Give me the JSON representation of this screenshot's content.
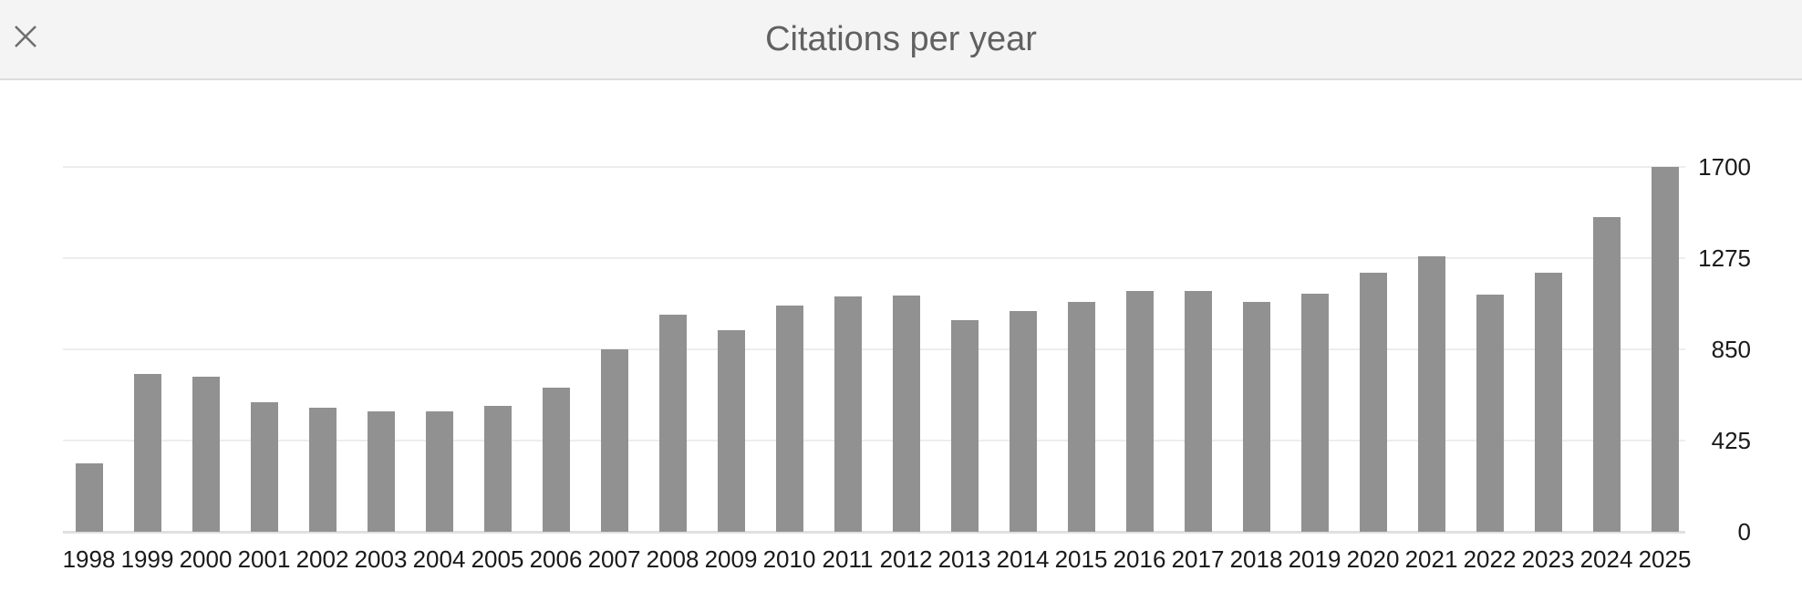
{
  "header": {
    "title": "Citations per year"
  },
  "colors": {
    "header_bg": "#f4f4f4",
    "divider": "#dcdcdc",
    "close_icon": "#6e6e6e",
    "title_text": "#616161",
    "bar": "#919191",
    "gridline": "#ededed",
    "baseline": "#e0e0e0",
    "axis_text": "#1a1a1a"
  },
  "chart_data": {
    "type": "bar",
    "title": "Citations per year",
    "categories": [
      "1998",
      "1999",
      "2000",
      "2001",
      "2002",
      "2003",
      "2004",
      "2005",
      "2006",
      "2007",
      "2008",
      "2009",
      "2010",
      "2011",
      "2012",
      "2013",
      "2014",
      "2015",
      "2016",
      "2017",
      "2018",
      "2019",
      "2020",
      "2021",
      "2022",
      "2023",
      "2024",
      "2025"
    ],
    "values": [
      318,
      734,
      724,
      602,
      580,
      562,
      560,
      588,
      672,
      850,
      1012,
      938,
      1056,
      1097,
      1100,
      986,
      1028,
      1071,
      1121,
      1121,
      1071,
      1111,
      1205,
      1283,
      1104,
      1205,
      1468,
      1700
    ],
    "xlabel": "",
    "ylabel": "",
    "ylim": [
      0,
      1700
    ],
    "yticks": [
      0,
      425,
      850,
      1275,
      1700
    ],
    "ytick_side": "right",
    "grid": true,
    "legend": false
  }
}
